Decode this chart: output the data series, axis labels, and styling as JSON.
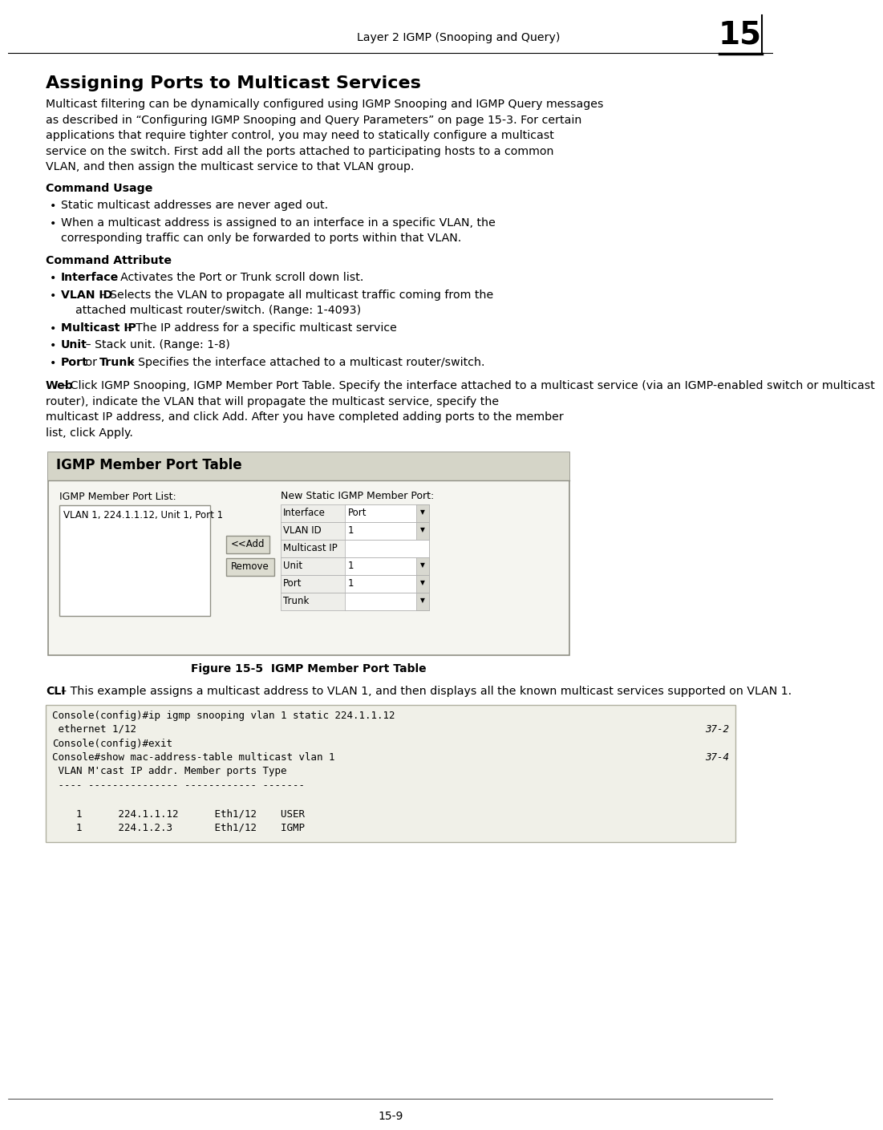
{
  "page_header_text": "Layer 2 IGMP (Snooping and Query)",
  "chapter_num": "15",
  "page_footer": "15-9",
  "title": "Assigning Ports to Multicast Services",
  "body_para": "Multicast filtering can be dynamically configured using IGMP Snooping and IGMP Query messages as described in “Configuring IGMP Snooping and Query Parameters” on page 15-3. For certain applications that require tighter control, you may need to statically configure a multicast service on the switch. First add all the ports attached to participating hosts to a common VLAN, and then assign the multicast service to that VLAN group.",
  "cmd_usage_title": "Command Usage",
  "cmd_usage_bullets": [
    "Static multicast addresses are never aged out.",
    "When a multicast address is assigned to an interface in a specific VLAN, the corresponding traffic can only be forwarded to ports within that VLAN."
  ],
  "cmd_attr_title": "Command Attribute",
  "web_para_rest": " – Click IGMP Snooping, IGMP Member Port Table. Specify the interface attached to a multicast service (via an IGMP-enabled switch or multicast router), indicate the VLAN that will propagate the multicast service, specify the multicast IP address, and click Add. After you have completed adding ports to the member list, click Apply.",
  "figure_box_title": "IGMP Member Port Table",
  "igmp_list_label": "IGMP Member Port List:",
  "igmp_list_item": "VLAN 1, 224.1.1.12, Unit 1, Port 1",
  "igmp_new_label": "New Static IGMP Member Port:",
  "igmp_add_btn": "<<Add",
  "igmp_remove_btn": "Remove",
  "igmp_rows": [
    [
      "Interface",
      "Port",
      true
    ],
    [
      "VLAN ID",
      "1",
      true
    ],
    [
      "Multicast IP",
      "",
      false
    ],
    [
      "Unit",
      "1",
      true
    ],
    [
      "Port",
      "1",
      true
    ],
    [
      "Trunk",
      "",
      true
    ]
  ],
  "figure_caption": "Figure 15-5  IGMP Member Port Table",
  "cli_intro_rest": " – This example assigns a multicast address to VLAN 1, and then displays all the known multicast services supported on VLAN 1.",
  "cli_code": [
    [
      "Console(config)#ip igmp snooping vlan 1 static 224.1.1.12",
      ""
    ],
    [
      " ethernet 1/12",
      "37-2"
    ],
    [
      "Console(config)#exit",
      ""
    ],
    [
      "Console#show mac-address-table multicast vlan 1",
      "37-4"
    ],
    [
      " VLAN M'cast IP addr. Member ports Type",
      ""
    ],
    [
      " ---- --------------- ------------ -------",
      ""
    ],
    [
      "",
      ""
    ],
    [
      "    1      224.1.1.12      Eth1/12    USER",
      ""
    ],
    [
      "    1      224.1.2.3       Eth1/12    IGMP",
      ""
    ]
  ]
}
